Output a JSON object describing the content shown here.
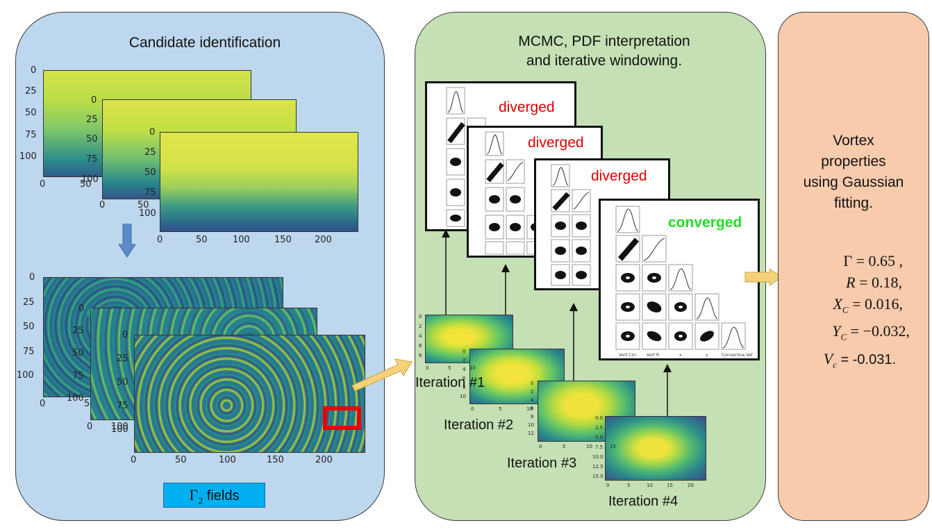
{
  "panels": {
    "candidate": {
      "title": "Candidate identification",
      "gamma_label_symbol": "Γ",
      "gamma_label_sub": "2",
      "gamma_label_text": " fields"
    },
    "mcmc": {
      "title_line1": "MCMC, PDF interpretation",
      "title_line2": "and iterative windowing."
    },
    "vortex": {
      "title_line1": "Vortex",
      "title_line2": "properties",
      "title_line3": "using Gaussian",
      "title_line4": "fitting."
    }
  },
  "plot_ticks": {
    "y_main": [
      "0",
      "25",
      "50",
      "75",
      "100"
    ],
    "x_main": [
      "0",
      "50",
      "100",
      "150",
      "200"
    ],
    "y_back": [
      "0",
      "25",
      "50",
      "75",
      "100"
    ],
    "x_back": [
      "0",
      "50"
    ],
    "y_mid": [
      "0",
      "25",
      "50",
      "75",
      "100"
    ],
    "x_mid": [
      "0",
      "50"
    ],
    "x_mid_b": [
      "0",
      "5"
    ],
    "x_back_b": [
      "0",
      "5"
    ],
    "x_mid_c": [
      "0",
      "100"
    ]
  },
  "corner_plots": [
    {
      "status": "diverged",
      "color": "#e00000"
    },
    {
      "status": "diverged",
      "color": "#e00000"
    },
    {
      "status": "diverged",
      "color": "#e00000"
    },
    {
      "status": "converged",
      "color": "#22dd22"
    }
  ],
  "corner_axis_labels": [
    "Vort Circ",
    "Vort R",
    "x",
    "y",
    "Convective Vel"
  ],
  "iterations": [
    {
      "label": "Iteration #1",
      "yticks": [
        "0",
        "2",
        "4",
        "6",
        "8"
      ],
      "xticks": [
        "0",
        "5",
        "10"
      ]
    },
    {
      "label": "Iteration #2",
      "yticks": [
        "0",
        "2",
        "4",
        "6",
        "8",
        "10"
      ],
      "xticks": [
        "0",
        "5",
        "10"
      ]
    },
    {
      "label": "Iteration #3",
      "yticks": [
        "0",
        "2",
        "4",
        "6",
        "8",
        "10",
        "12"
      ],
      "xticks": [
        "0",
        "5",
        "10",
        "15"
      ]
    },
    {
      "label": "Iteration #4",
      "yticks": [
        "0.0",
        "2.5",
        "5.0",
        "7.5",
        "10.0",
        "12.5",
        "15.0"
      ],
      "xticks": [
        "0",
        "5",
        "10",
        "15",
        "20"
      ]
    }
  ],
  "results": [
    {
      "symbol": "Γ",
      "sub": "",
      "text": " = 0.65 ,"
    },
    {
      "symbol": "R",
      "sub": "",
      "text": " = 0.18,"
    },
    {
      "symbol": "X",
      "sub": "C",
      "text": " = 0.016,"
    },
    {
      "symbol": "Y",
      "sub": "C",
      "text": " = −0.032,"
    },
    {
      "symbol": "V",
      "sub": "c",
      "text": "  = -0.031."
    }
  ],
  "colors": {
    "panel_candidate": "#bdd7ee",
    "panel_mcmc": "#c5e0b4",
    "panel_vortex": "#f8cbad",
    "arrow_blue": "#5b8ac9",
    "arrow_yellow": "#f5d27a",
    "highlight_red": "#ee0000",
    "gamma_box": "#00b0f0"
  }
}
